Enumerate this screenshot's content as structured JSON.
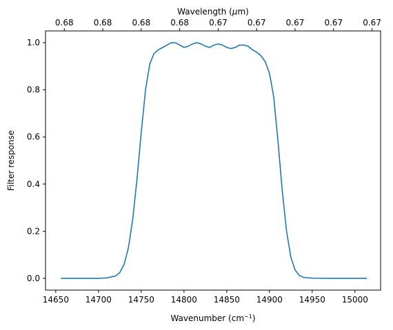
{
  "chart_data": {
    "type": "line",
    "title": "",
    "xlabel": "Wavenumber (cm",
    "xlabel_sup": "−1",
    "xlabel_close": ")",
    "ylabel": "Filter response",
    "top_xlabel": "Wavelength (",
    "top_xlabel_mu": "μ",
    "top_xlabel_unit": "m)",
    "xlim": [
      14638,
      15030
    ],
    "ylim": [
      -0.05,
      1.05
    ],
    "x_ticks": [
      14650,
      14700,
      14750,
      14800,
      14850,
      14900,
      14950,
      15000
    ],
    "x_tick_labels": [
      "14650",
      "14700",
      "14750",
      "14800",
      "14850",
      "14900",
      "14950",
      "15000"
    ],
    "y_ticks": [
      0.0,
      0.2,
      0.4,
      0.6,
      0.8,
      1.0
    ],
    "y_tick_labels": [
      "0.0",
      "0.2",
      "0.4",
      "0.6",
      "0.8",
      "1.0"
    ],
    "top_ticks": [
      14660,
      14705,
      14750,
      14795,
      14840,
      14885,
      14930,
      14975,
      15020
    ],
    "top_tick_labels": [
      "0.68",
      "0.68",
      "0.68",
      "0.68",
      "0.67",
      "0.67",
      "0.67",
      "0.67",
      "0.67"
    ],
    "grid": false,
    "line_color": "#1f77b4",
    "series": [
      {
        "x": [
          14656,
          14680,
          14700,
          14710,
          14720,
          14725,
          14730,
          14735,
          14740,
          14745,
          14750,
          14755,
          14760,
          14765,
          14770,
          14775,
          14780,
          14785,
          14790,
          14795,
          14800,
          14805,
          14810,
          14815,
          14820,
          14825,
          14830,
          14835,
          14840,
          14845,
          14850,
          14855,
          14860,
          14865,
          14870,
          14875,
          14880,
          14885,
          14890,
          14895,
          14900,
          14905,
          14910,
          14915,
          14920,
          14925,
          14930,
          14935,
          14940,
          14950,
          14970,
          14990,
          15014
        ],
        "values": [
          0.0,
          0.0,
          0.0,
          0.002,
          0.01,
          0.025,
          0.06,
          0.13,
          0.25,
          0.42,
          0.62,
          0.8,
          0.91,
          0.955,
          0.97,
          0.98,
          0.99,
          1.0,
          1.0,
          0.99,
          0.98,
          0.985,
          0.995,
          1.0,
          0.995,
          0.985,
          0.98,
          0.99,
          0.995,
          0.99,
          0.98,
          0.975,
          0.98,
          0.99,
          0.99,
          0.985,
          0.97,
          0.96,
          0.945,
          0.92,
          0.87,
          0.77,
          0.58,
          0.37,
          0.2,
          0.09,
          0.035,
          0.012,
          0.004,
          0.001,
          0.0,
          0.0,
          0.0
        ]
      }
    ]
  }
}
